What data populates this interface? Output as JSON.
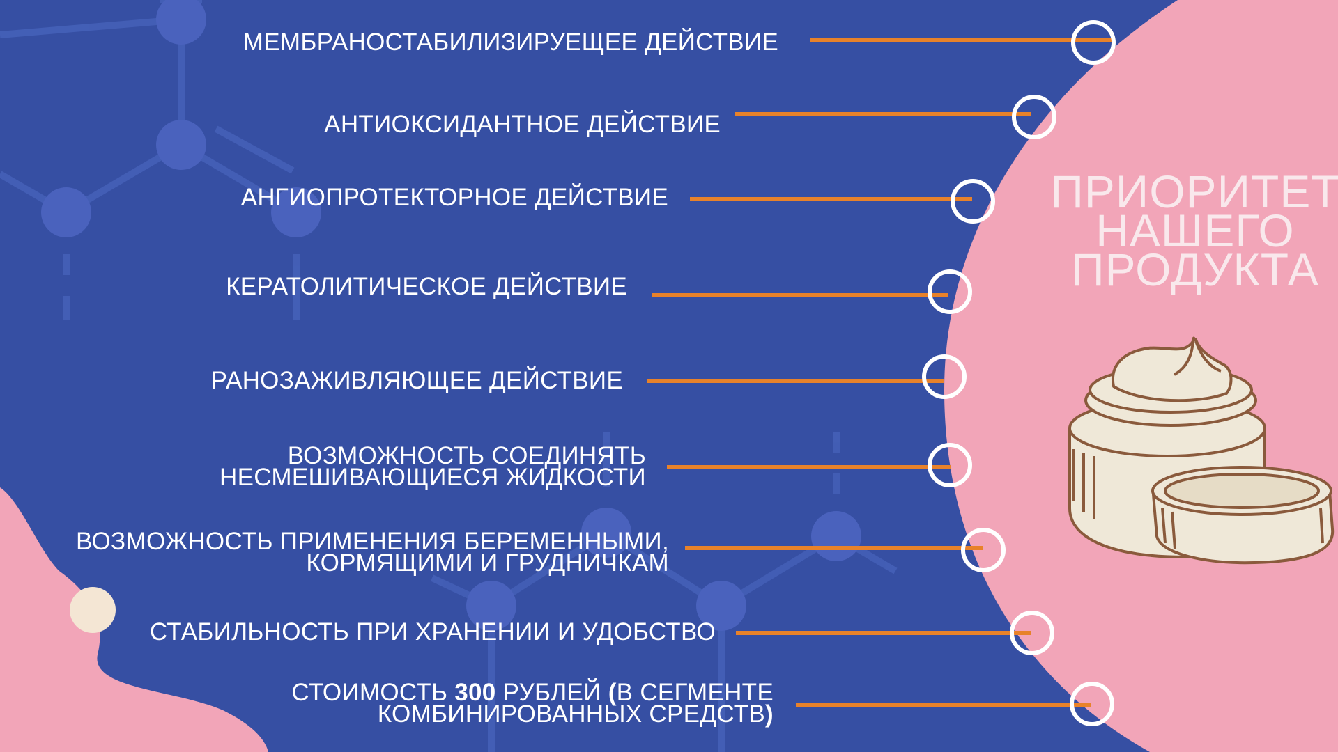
{
  "title": {
    "line1": "ПРИОРИТЕТ",
    "line2": "НАШЕГО",
    "line3": "ПРОДУКТА"
  },
  "items": [
    {
      "line1": "МЕМБРАНОСТАБИЛИЗИРУЕЩЕЕ ДЕЙСТВИЕ"
    },
    {
      "line1": "АНТИОКСИДАНТНОЕ ДЕЙСТВИЕ"
    },
    {
      "line1": "АНГИОПРОТЕКТОРНОЕ ДЕЙСТВИЕ"
    },
    {
      "line1": "КЕРАТОЛИТИЧЕСКОЕ ДЕЙСТВИЕ"
    },
    {
      "line1": "РАНОЗАЖИВЛЯЮЩЕЕ ДЕЙСТВИЕ"
    },
    {
      "line1": "ВОЗМОЖНОСТЬ СОЕДИНЯТЬ",
      "line2": "НЕСМЕШИВАЮЩИЕСЯ ЖИДКОСТИ"
    },
    {
      "line1": "ВОЗМОЖНОСТЬ ПРИМЕНЕНИЯ БЕРЕМЕННЫМИ,",
      "line2": "КОРМЯЩИМИ И ГРУДНИЧКАМ"
    },
    {
      "line1": "СТАБИЛЬНОСТЬ ПРИ ХРАНЕНИИ И УДОБСТВО"
    },
    {
      "line1_a": "СТОИМОСТЬ ",
      "line1_b": "300",
      "line1_c": " РУБЛЕЙ ",
      "line1_d": "(",
      "line1_e": "В СЕГМЕНТЕ",
      "line2_a": "КОМБИНИРОВАННЫХ СРЕДСТВ",
      "line2_b": ")"
    }
  ],
  "colors": {
    "background": "#364fa3",
    "pink": "#f2a5b8",
    "connector": "#e8822a",
    "ring": "#ffffff",
    "molecule": "#4a62bd",
    "cream_dot": "#f4e6d4"
  },
  "icons": {
    "molecule": "molecule-pattern-icon",
    "cream_jar": "cream-jar-icon"
  }
}
